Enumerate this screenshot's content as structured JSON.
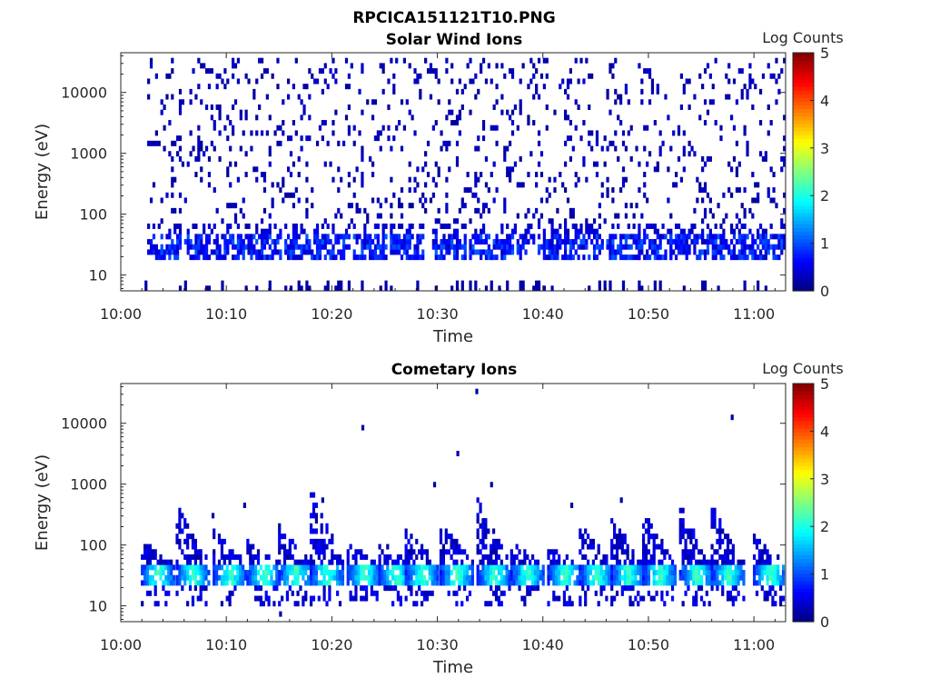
{
  "figure": {
    "title": "RPCICA151121T10.PNG"
  },
  "chart_data": [
    {
      "type": "heatmap",
      "title": "Solar Wind Ions",
      "xlabel": "Time",
      "ylabel": "Energy (eV)",
      "x_range": [
        "10:00",
        "11:03"
      ],
      "x_ticks": [
        "10:00",
        "10:10",
        "10:20",
        "10:30",
        "10:40",
        "10:50",
        "11:00"
      ],
      "y_scale": "log",
      "y_range": [
        5.5,
        45000
      ],
      "y_ticks": [
        {
          "value": 10,
          "label": "10"
        },
        {
          "value": 100,
          "label": "100"
        },
        {
          "value": 1000,
          "label": "1000"
        },
        {
          "value": 10000,
          "label": "10000"
        }
      ],
      "colorbar": {
        "title": "Log Counts",
        "range": [
          0,
          5
        ],
        "ticks": [
          "0",
          "1",
          "2",
          "3",
          "4",
          "5"
        ],
        "colormap": "jet"
      },
      "description_of_data": {
        "scattered_counts_log": 0.1,
        "band_energy_eV": [
          18,
          45
        ],
        "band_level_log": 0.6,
        "bursts_minutes": [
          4.0,
          7.5,
          10.5,
          13.5,
          17,
          20,
          23.5,
          27,
          31,
          34.5,
          37.5,
          41,
          44,
          47.5,
          50.5,
          53.5,
          56.5,
          59.5,
          62
        ]
      }
    },
    {
      "type": "heatmap",
      "title": "Cometary Ions",
      "xlabel": "Time",
      "ylabel": "Energy (eV)",
      "x_range": [
        "10:00",
        "11:03"
      ],
      "x_ticks": [
        "10:00",
        "10:10",
        "10:20",
        "10:30",
        "10:40",
        "10:50",
        "11:00"
      ],
      "y_scale": "log",
      "y_range": [
        5.5,
        45000
      ],
      "y_ticks": [
        {
          "value": 10,
          "label": "10"
        },
        {
          "value": 100,
          "label": "100"
        },
        {
          "value": 1000,
          "label": "1000"
        },
        {
          "value": 10000,
          "label": "10000"
        }
      ],
      "colorbar": {
        "title": "Log Counts",
        "range": [
          0,
          5
        ],
        "ticks": [
          "0",
          "1",
          "2",
          "3",
          "4",
          "5"
        ],
        "colormap": "jet"
      },
      "description_of_data": {
        "core_energy_eV": [
          30,
          45
        ],
        "core_level_log": 1.7,
        "plumes_minutes": [
          3.5,
          6.8,
          10.3,
          13.5,
          16.5,
          19.5,
          23.0,
          26.0,
          28.5,
          31.8,
          35.3,
          38.5,
          42.0,
          45.0,
          48.0,
          51.0,
          54.5,
          57.5,
          61.5
        ],
        "plume_max_energy_eV": [
          100,
          330,
          140,
          90,
          180,
          600,
          100,
          100,
          150,
          210,
          400,
          100,
          80,
          170,
          200,
          250,
          300,
          330,
          110
        ]
      }
    }
  ]
}
